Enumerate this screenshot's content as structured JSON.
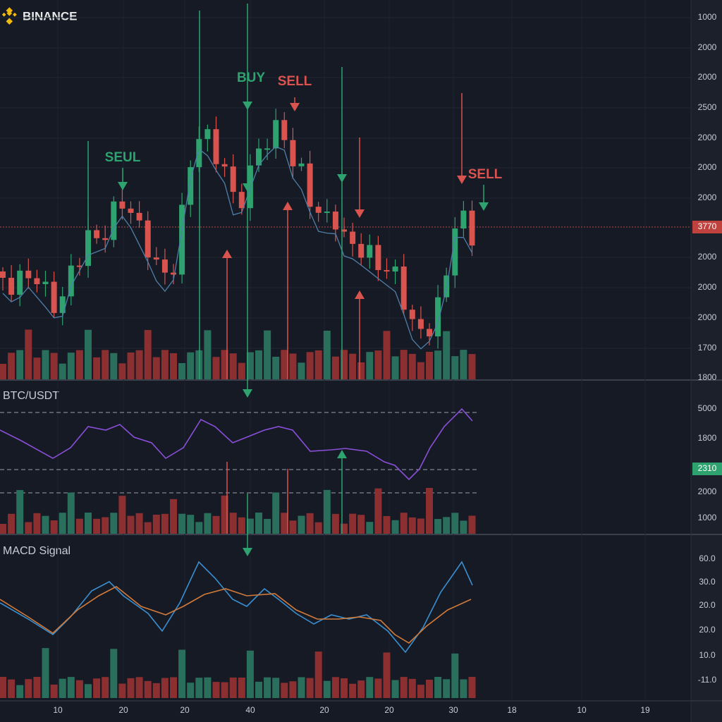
{
  "brand": "BINANCE",
  "main_axis": [
    "1000",
    "2000",
    "2000",
    "2500",
    "2000",
    "2000",
    "2000",
    "2000",
    "2000",
    "2000",
    "1700",
    "1800"
  ],
  "price_badge": "3770",
  "signals": [
    "SEUL",
    "BUY",
    "SELL",
    "SELL"
  ],
  "pane2": {
    "title": "BTC/USDT",
    "axis": [
      "5000",
      "1800",
      "2000",
      "1000"
    ],
    "badge": "2310"
  },
  "pane3": {
    "title": "MACD Signal",
    "axis": [
      "60.0",
      "30.0",
      "20.0",
      "20.0",
      "10.0",
      "-11.0"
    ]
  },
  "x_axis": [
    "10",
    "20",
    "20",
    "40",
    "20",
    "20",
    "30",
    "18",
    "10",
    "19"
  ]
}
